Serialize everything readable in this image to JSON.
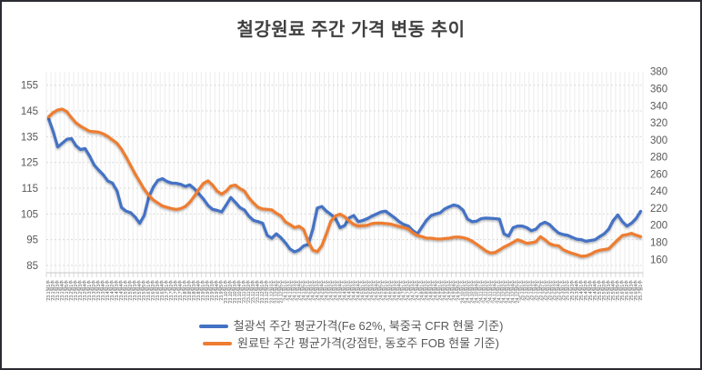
{
  "chart_data": {
    "type": "line",
    "title": "철강원료 주간 가격 변동 추이",
    "legend_position": "bottom",
    "grid": {
      "horizontal": true,
      "vertical": true
    },
    "x_axis_label_rotation": -90,
    "axes": {
      "left": {
        "min": 85,
        "max": 155,
        "ticks": [
          85,
          95,
          105,
          115,
          125,
          135,
          145,
          155
        ]
      },
      "right": {
        "min": 160,
        "max": 380,
        "ticks": [
          160,
          180,
          200,
          220,
          240,
          260,
          280,
          300,
          320,
          340,
          360,
          380
        ]
      }
    },
    "categories": [
      "'23.1월1주",
      "'23.1월2주",
      "'23.1월3주",
      "'23.1월4주",
      "'23.1월5주",
      "'23.2월1주",
      "'23.2월2주",
      "'23.2월3주",
      "'23.2월4주",
      "'23.3월1주",
      "'23.3월2주",
      "'23.3월3주",
      "'23.3월4주",
      "'23.4월1주",
      "'23.4월2주",
      "'23.4월3주",
      "'23.4월4주",
      "'23.5월1주",
      "'23.5월2주",
      "'23.5월3주",
      "'23.5월4주",
      "'23.5월5주",
      "'23.6월1주",
      "'23.6월2주",
      "'23.6월3주",
      "'23.6월4주",
      "'23.7월1주",
      "'23.7월2주",
      "'23.7월3주",
      "'23.7월4주",
      "'23.8월1주",
      "'23.8월2주",
      "'23.8월3주",
      "'23.8월4주",
      "'23.9월1주",
      "'23.9월2주",
      "'23.9월3주",
      "'23.9월4주",
      "'23.9월5주",
      "'23.10월1주",
      "'23.10월2주",
      "'23.10월3주",
      "'23.10월4주",
      "'23.11월1주",
      "'23.11월2주",
      "'23.11월3주",
      "'23.11월4주",
      "'23.12월1주",
      "'23.12월2주",
      "'23.12월3주",
      "'23.12월4주",
      "'23.12월5주",
      "'24.1월1주",
      "'24.1월2주",
      "'24.1월3주",
      "'24.1월4주",
      "'24.1월5주",
      "'24.2월1주",
      "'24.2월2주",
      "'24.2월3주",
      "'24.2월4주",
      "'24.3월1주",
      "'24.3월2주",
      "'24.3월3주",
      "'24.3월4주",
      "'24.4월1주",
      "'24.4월2주",
      "'24.4월3주",
      "'24.4월4주",
      "'24.5월1주",
      "'24.5월2주",
      "'24.5월3주",
      "'24.5월4주",
      "'24.5월5주",
      "'24.6월1주",
      "'24.6월2주",
      "'24.6월3주",
      "'24.6월4주",
      "'24.7월1주",
      "'24.7월2주",
      "'24.7월3주",
      "'24.7월4주",
      "'24.8월1주",
      "'24.8월2주",
      "'24.8월3주",
      "'24.8월4주",
      "'24.9월1주",
      "'24.9월2주",
      "'24.9월3주",
      "'24.9월4주",
      "'24.9월5주",
      "'24.10월1주",
      "'24.10월2주",
      "'24.10월3주",
      "'24.10월4주",
      "'24.11월1주",
      "'24.11월2주",
      "'24.11월3주",
      "'24.11월4주",
      "'24.12월1주",
      "'24.12월2주",
      "'24.12월3주",
      "'24.12월4주",
      "'24.12월5주",
      "'25.1월1주",
      "'25.1월2주",
      "'25.1월3주",
      "'25.1월4주",
      "'25.1월5주",
      "'25.2월1주",
      "'25.2월2주",
      "'25.2월3주",
      "'25.2월4주",
      "'25.3월1주",
      "'25.3월2주",
      "'25.3월3주",
      "'25.3월4주",
      "'25.4월1주",
      "'25.4월2주",
      "'25.4월3주",
      "'25.4월4주",
      "'25.5월1주",
      "'25.5월2주",
      "'25.5월3주",
      "'25.5월4주",
      "'25.5월5주",
      "'25.6월1주",
      "'25.6월2주",
      "'25.6월3주",
      "'25.6월4주",
      "'25.7월1주"
    ],
    "series": [
      {
        "name": "철광석 주간 평균가격(Fe 62%, 북중국 CFR 현물 기준)",
        "axis": "left",
        "color": "#4472C4",
        "values": [
          142,
          137,
          131,
          132.5,
          134,
          134.3,
          131.5,
          130,
          130.4,
          127.5,
          124,
          122,
          120.2,
          117.8,
          117,
          114,
          107.5,
          106.1,
          105.5,
          103.8,
          101.4,
          104.5,
          111.6,
          115.5,
          118.1,
          118.7,
          117.6,
          117,
          116.9,
          116.5,
          115.7,
          116.3,
          114.8,
          112.8,
          110.8,
          108.3,
          106.8,
          106.4,
          105.8,
          108.5,
          111.4,
          109.5,
          107.5,
          106.5,
          104.1,
          102.5,
          102,
          101.4,
          96.7,
          95.6,
          97.3,
          95.8,
          93.8,
          91.4,
          90.3,
          91,
          92.6,
          93.2,
          99,
          107.3,
          107.9,
          106.1,
          104.8,
          103.2,
          99.7,
          100.5,
          103.5,
          104.4,
          102,
          102.5,
          103.2,
          104.2,
          105,
          105.8,
          106.1,
          104.8,
          103.5,
          102,
          100.9,
          100.3,
          98.5,
          97.3,
          100,
          102.6,
          104.4,
          105,
          105.5,
          107,
          107.8,
          108.5,
          108,
          106.5,
          103,
          102,
          102.2,
          103.2,
          103.4,
          103.3,
          103.2,
          103,
          97.3,
          96.4,
          99.7,
          100.3,
          100.3,
          99.7,
          98.5,
          99.1,
          101,
          101.8,
          100.9,
          99.1,
          97.6,
          97,
          96.7,
          95.9,
          95.2,
          95,
          94.4,
          94.7,
          95,
          96.2,
          97.3,
          99.1,
          102.5,
          104.6,
          102,
          100.3,
          101.4,
          103.2,
          106
        ]
      },
      {
        "name": "원료탄 주간 평균가격(강점탄, 동호주 FOB 현물 기준)",
        "axis": "right",
        "color": "#ED7D31",
        "values": [
          327,
          332,
          335,
          336,
          333,
          326,
          320,
          316,
          313,
          310,
          309.5,
          309,
          307,
          304,
          300,
          296,
          289,
          280,
          270,
          260,
          251,
          242,
          235,
          229.5,
          226,
          222.5,
          221,
          219.5,
          218.5,
          219.5,
          222,
          227,
          234,
          242,
          249,
          252,
          247,
          240,
          236.5,
          240,
          246,
          247,
          243,
          240,
          232,
          226,
          221,
          219,
          218.6,
          218,
          214,
          211,
          204,
          200.8,
          197.3,
          198.8,
          195,
          181,
          171,
          169,
          176,
          190,
          205,
          211,
          213,
          210,
          205,
          201,
          199,
          199.5,
          200,
          202,
          202.5,
          202.5,
          202,
          201.5,
          200,
          198.5,
          197.3,
          195.5,
          191,
          188,
          186.6,
          184.8,
          184.8,
          184,
          183.7,
          184.4,
          184.8,
          186,
          186.2,
          185.5,
          184,
          181.3,
          177.7,
          174,
          170,
          167.5,
          168,
          171,
          174.5,
          177,
          180,
          183,
          181,
          178.8,
          179.5,
          180.6,
          186.6,
          183,
          178.5,
          176.5,
          175.9,
          171.3,
          169,
          167,
          165.4,
          163.6,
          164,
          166,
          168.9,
          170.7,
          171.5,
          172.4,
          177.7,
          183,
          188,
          189,
          190.5,
          188.3,
          186.6
        ]
      }
    ]
  },
  "colors": {
    "title_text": "#404040",
    "axis_text": "#595959",
    "grid_h": "#D9D9D9",
    "grid_v": "#ECECEC",
    "tick": "#BFBFBF",
    "axis_line": "#C9C9C9",
    "border": "#2B2B33",
    "background": "#FFFFFF"
  }
}
